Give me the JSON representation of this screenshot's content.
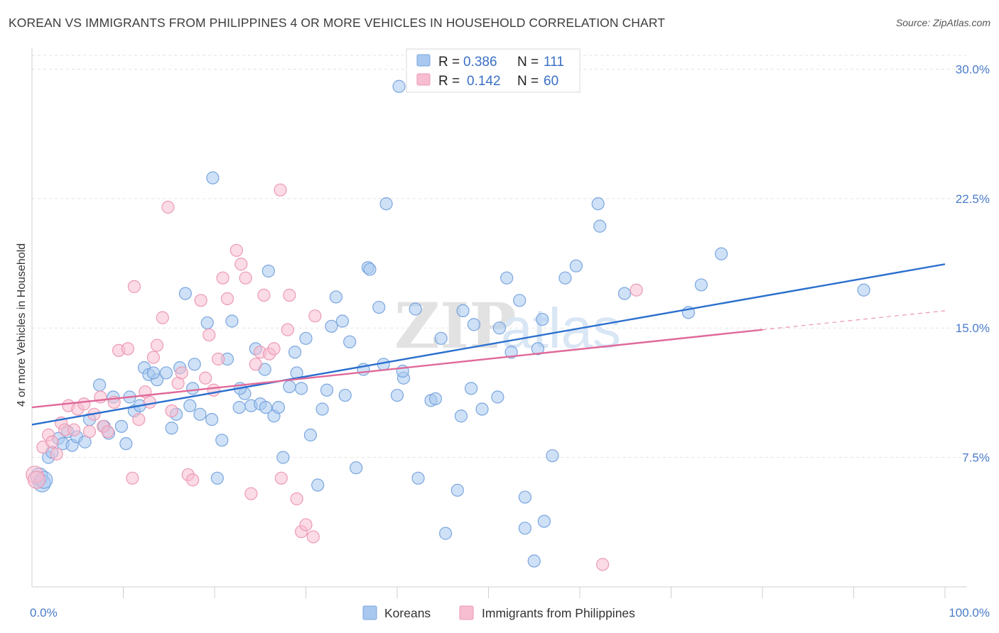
{
  "title": "KOREAN VS IMMIGRANTS FROM PHILIPPINES 4 OR MORE VEHICLES IN HOUSEHOLD CORRELATION CHART",
  "source": "Source: ZipAtlas.com",
  "watermark": {
    "zip": "ZIP",
    "atlas": "atlas"
  },
  "chart_data": {
    "type": "scatter",
    "xlabel": "",
    "ylabel": "4 or more Vehicles in Household",
    "xlim": [
      0,
      100
    ],
    "ylim": [
      0,
      30.8
    ],
    "x_tick_labels": [
      {
        "value": 0,
        "label": "0.0%"
      },
      {
        "value": 100,
        "label": "100.0%"
      }
    ],
    "y_tick_labels": [
      {
        "value": 7.5,
        "label": "7.5%"
      },
      {
        "value": 15.0,
        "label": "15.0%"
      },
      {
        "value": 22.5,
        "label": "22.5%"
      },
      {
        "value": 30.0,
        "label": "30.0%"
      }
    ],
    "grid": true,
    "legend_placement": "top-center",
    "stats": [
      {
        "r_label": "R = ",
        "r_value": "0.386",
        "n_label": "N = ",
        "n_value": "111"
      },
      {
        "r_label": "R = ",
        "r_value": "0.142",
        "n_label": "N = ",
        "n_value": "60"
      }
    ],
    "series": [
      {
        "name": "Koreans",
        "color": "#a8c8f0",
        "stroke": "#7aa6de",
        "line_color": "#2a6fce",
        "trend": {
          "x": [
            0,
            100
          ],
          "y": [
            9.4,
            18.7
          ]
        },
        "points": [
          [
            0.8,
            6.4
          ],
          [
            1.1,
            6.0
          ],
          [
            1.3,
            6.2
          ],
          [
            1.8,
            7.5
          ],
          [
            2.2,
            7.8
          ],
          [
            2.9,
            8.6
          ],
          [
            3.4,
            8.3
          ],
          [
            3.9,
            9.0
          ],
          [
            4.4,
            8.2
          ],
          [
            4.9,
            8.7
          ],
          [
            5.8,
            8.4
          ],
          [
            6.3,
            9.7
          ],
          [
            7.4,
            11.7
          ],
          [
            7.9,
            9.3
          ],
          [
            8.4,
            8.9
          ],
          [
            8.9,
            11.0
          ],
          [
            9.8,
            9.3
          ],
          [
            10.3,
            8.3
          ],
          [
            10.7,
            11.0
          ],
          [
            11.2,
            10.2
          ],
          [
            11.8,
            10.5
          ],
          [
            12.3,
            12.7
          ],
          [
            12.8,
            12.3
          ],
          [
            13.7,
            12.0
          ],
          [
            13.3,
            12.4
          ],
          [
            14.7,
            12.4
          ],
          [
            15.3,
            9.2
          ],
          [
            15.8,
            10.0
          ],
          [
            16.2,
            12.7
          ],
          [
            16.8,
            17.0
          ],
          [
            17.3,
            10.5
          ],
          [
            17.8,
            12.9
          ],
          [
            17.6,
            11.5
          ],
          [
            18.4,
            10.0
          ],
          [
            19.2,
            15.3
          ],
          [
            19.7,
            9.7
          ],
          [
            20.3,
            6.3
          ],
          [
            19.8,
            23.7
          ],
          [
            20.8,
            8.5
          ],
          [
            21.4,
            13.2
          ],
          [
            21.9,
            15.4
          ],
          [
            22.7,
            10.4
          ],
          [
            23.3,
            11.2
          ],
          [
            22.8,
            11.5
          ],
          [
            24.0,
            10.5
          ],
          [
            24.5,
            13.8
          ],
          [
            25.0,
            10.6
          ],
          [
            25.5,
            12.6
          ],
          [
            25.9,
            18.3
          ],
          [
            25.6,
            10.4
          ],
          [
            26.5,
            9.9
          ],
          [
            27.0,
            10.4
          ],
          [
            27.5,
            7.5
          ],
          [
            28.2,
            11.6
          ],
          [
            28.8,
            13.6
          ],
          [
            29.0,
            12.4
          ],
          [
            29.5,
            11.5
          ],
          [
            30.0,
            14.4
          ],
          [
            30.5,
            8.8
          ],
          [
            31.3,
            5.9
          ],
          [
            31.8,
            10.3
          ],
          [
            32.3,
            11.4
          ],
          [
            32.8,
            15.1
          ],
          [
            33.3,
            16.8
          ],
          [
            34.0,
            15.4
          ],
          [
            34.3,
            11.1
          ],
          [
            34.8,
            14.2
          ],
          [
            35.5,
            6.9
          ],
          [
            36.3,
            12.6
          ],
          [
            36.8,
            18.5
          ],
          [
            37.0,
            18.4
          ],
          [
            38.0,
            16.2
          ],
          [
            38.5,
            12.9
          ],
          [
            38.8,
            22.2
          ],
          [
            40.0,
            11.1
          ],
          [
            40.7,
            12.1
          ],
          [
            40.6,
            12.5
          ],
          [
            42.0,
            16.1
          ],
          [
            40.2,
            29.0
          ],
          [
            42.3,
            6.3
          ],
          [
            43.7,
            10.8
          ],
          [
            44.2,
            10.9
          ],
          [
            44.8,
            14.4
          ],
          [
            45.3,
            3.1
          ],
          [
            46.6,
            5.6
          ],
          [
            47.0,
            9.9
          ],
          [
            47.2,
            16.0
          ],
          [
            48.1,
            11.5
          ],
          [
            48.4,
            15.2
          ],
          [
            49.3,
            10.3
          ],
          [
            51.0,
            11.0
          ],
          [
            51.2,
            15.0
          ],
          [
            52.0,
            17.9
          ],
          [
            52.5,
            13.6
          ],
          [
            53.4,
            16.6
          ],
          [
            54.0,
            5.2
          ],
          [
            54.0,
            3.4
          ],
          [
            55.0,
            1.5
          ],
          [
            55.4,
            13.8
          ],
          [
            55.9,
            15.5
          ],
          [
            56.1,
            3.8
          ],
          [
            57.0,
            7.6
          ],
          [
            58.4,
            17.9
          ],
          [
            59.6,
            18.6
          ],
          [
            62.0,
            22.2
          ],
          [
            62.2,
            20.9
          ],
          [
            64.9,
            17.0
          ],
          [
            71.9,
            15.9
          ],
          [
            73.3,
            17.5
          ],
          [
            75.5,
            19.3
          ],
          [
            91.1,
            17.2
          ]
        ]
      },
      {
        "name": "Immigrants from Philippines",
        "color": "#f7bdd0",
        "stroke": "#ec9ab5",
        "line_color": "#e0699a",
        "trend": {
          "x": [
            0,
            80
          ],
          "y": [
            10.4,
            14.9
          ]
        },
        "trend_dashed": {
          "x": [
            80,
            100
          ],
          "y": [
            14.9,
            16.0
          ]
        },
        "points": [
          [
            0.3,
            6.5
          ],
          [
            0.5,
            6.2
          ],
          [
            1.2,
            8.1
          ],
          [
            1.8,
            8.8
          ],
          [
            2.2,
            8.4
          ],
          [
            2.7,
            7.7
          ],
          [
            3.2,
            9.5
          ],
          [
            3.6,
            9.1
          ],
          [
            4.0,
            10.5
          ],
          [
            4.6,
            9.1
          ],
          [
            5.0,
            10.3
          ],
          [
            5.7,
            10.6
          ],
          [
            6.3,
            9.0
          ],
          [
            6.8,
            10.0
          ],
          [
            7.5,
            11.0
          ],
          [
            7.8,
            9.3
          ],
          [
            8.3,
            9.0
          ],
          [
            9.0,
            10.7
          ],
          [
            9.5,
            13.7
          ],
          [
            10.5,
            13.8
          ],
          [
            11.0,
            6.3
          ],
          [
            11.2,
            17.4
          ],
          [
            11.7,
            9.7
          ],
          [
            12.4,
            11.3
          ],
          [
            12.9,
            10.7
          ],
          [
            13.3,
            13.3
          ],
          [
            13.7,
            14.0
          ],
          [
            14.3,
            15.6
          ],
          [
            14.9,
            22.0
          ],
          [
            15.3,
            10.2
          ],
          [
            16.0,
            11.8
          ],
          [
            16.4,
            12.4
          ],
          [
            17.1,
            6.5
          ],
          [
            17.6,
            6.2
          ],
          [
            18.5,
            16.6
          ],
          [
            19.0,
            12.1
          ],
          [
            19.4,
            14.6
          ],
          [
            19.9,
            11.4
          ],
          [
            20.4,
            13.2
          ],
          [
            20.9,
            17.9
          ],
          [
            21.4,
            16.7
          ],
          [
            22.4,
            19.5
          ],
          [
            22.9,
            18.7
          ],
          [
            23.4,
            17.9
          ],
          [
            24.0,
            5.4
          ],
          [
            24.5,
            12.9
          ],
          [
            25.0,
            13.6
          ],
          [
            25.4,
            16.9
          ],
          [
            26.0,
            13.5
          ],
          [
            26.5,
            13.8
          ],
          [
            27.2,
            23.0
          ],
          [
            27.3,
            6.3
          ],
          [
            28.0,
            14.9
          ],
          [
            28.2,
            16.9
          ],
          [
            29.0,
            5.1
          ],
          [
            29.5,
            3.2
          ],
          [
            30.0,
            3.6
          ],
          [
            30.8,
            2.9
          ],
          [
            31.0,
            15.7
          ],
          [
            62.5,
            1.3
          ],
          [
            66.2,
            17.2
          ]
        ]
      }
    ]
  }
}
